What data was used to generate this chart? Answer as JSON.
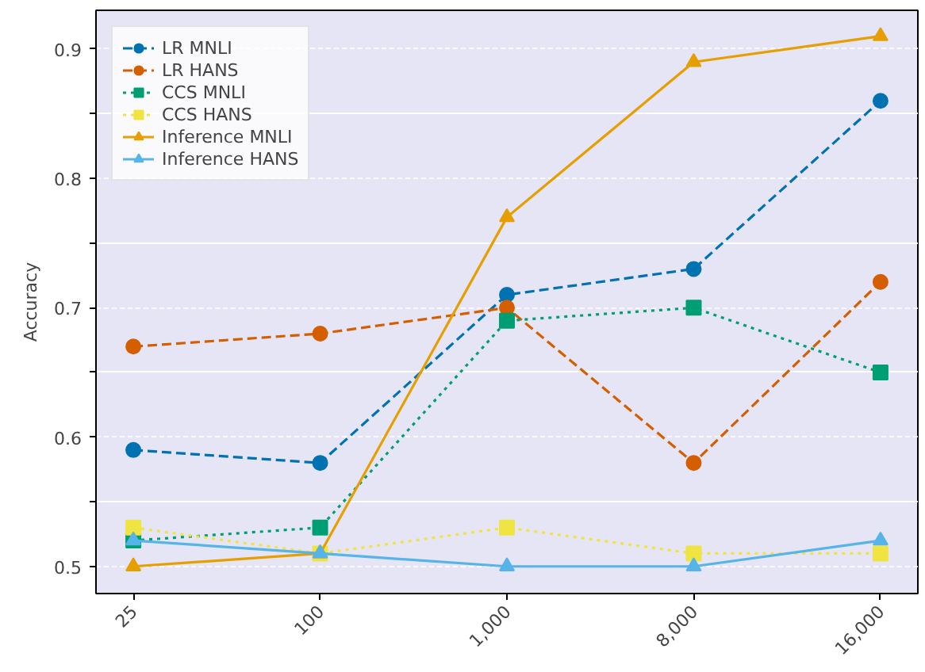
{
  "chart_data": {
    "type": "line",
    "ylabel": "Accuracy",
    "categories": [
      "25",
      "100",
      "1,000",
      "8,000",
      "16,000"
    ],
    "series": [
      {
        "name": "LR MNLI",
        "color": "#0072b2",
        "marker": "circle",
        "line_style": "dashed",
        "values": [
          0.59,
          0.58,
          0.71,
          0.73,
          0.86
        ]
      },
      {
        "name": "LR HANS",
        "color": "#d55e00",
        "marker": "circle",
        "line_style": "dashed",
        "values": [
          0.67,
          0.68,
          0.7,
          0.58,
          0.72
        ]
      },
      {
        "name": "CCS MNLI",
        "color": "#009e73",
        "marker": "square",
        "line_style": "dotted",
        "values": [
          0.52,
          0.53,
          0.69,
          0.7,
          0.65
        ]
      },
      {
        "name": "CCS HANS",
        "color": "#f0e442",
        "marker": "square",
        "line_style": "dotted",
        "values": [
          0.53,
          0.51,
          0.53,
          0.51,
          0.51
        ]
      },
      {
        "name": "Inference MNLI",
        "color": "#e69f00",
        "marker": "triangle",
        "line_style": "solid",
        "values": [
          0.5,
          0.51,
          0.77,
          0.89,
          0.91
        ]
      },
      {
        "name": "Inference HANS",
        "color": "#56b4e9",
        "marker": "triangle",
        "line_style": "solid",
        "values": [
          0.52,
          0.51,
          0.5,
          0.5,
          0.52
        ]
      }
    ],
    "ylim": [
      0.479,
      0.93
    ],
    "yticks": [
      0.5,
      {
        "value": 0.55,
        "label": null
      },
      0.6,
      {
        "value": 0.65,
        "label": null
      },
      0.7,
      {
        "value": 0.75,
        "label": null
      },
      0.8,
      {
        "value": 0.85,
        "label": null
      },
      0.9
    ],
    "grid": "y",
    "legend": "top left"
  }
}
